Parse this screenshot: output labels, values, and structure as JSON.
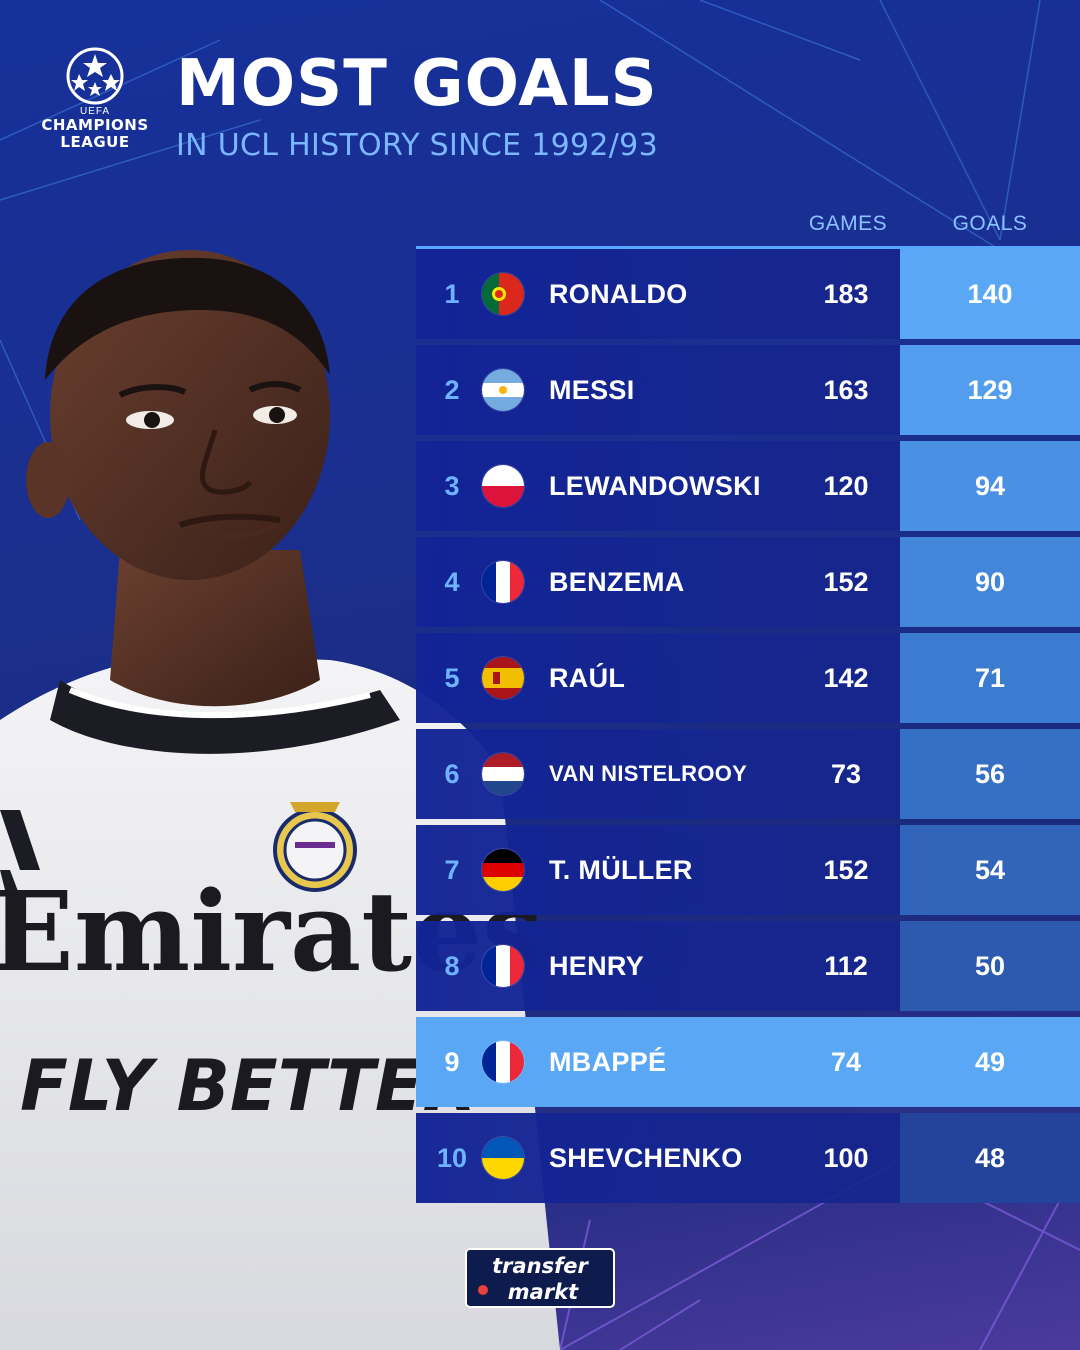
{
  "brand": {
    "competition_small": "UEFA",
    "competition_line1": "CHAMPIONS",
    "competition_line2": "LEAGUE",
    "publisher_line1": "transfer",
    "publisher_line2": "markt"
  },
  "header": {
    "title": "MOST GOALS",
    "subtitle": "IN UCL HISTORY SINCE 1992/93"
  },
  "table": {
    "columns": {
      "games": "GAMES",
      "goals": "GOALS"
    },
    "rows": [
      {
        "rank": "1",
        "name": "RONALDO",
        "flag": "portugal-flag",
        "games": "183",
        "goals": "140",
        "goals_color": "#5aa8f5"
      },
      {
        "rank": "2",
        "name": "MESSI",
        "flag": "argentina-flag",
        "games": "163",
        "goals": "129",
        "goals_color": "#529ded"
      },
      {
        "rank": "3",
        "name": "LEWANDOWSKI",
        "flag": "poland-flag",
        "games": "120",
        "goals": "94",
        "goals_color": "#4a90e3"
      },
      {
        "rank": "4",
        "name": "BENZEMA",
        "flag": "france-flag",
        "games": "152",
        "goals": "90",
        "goals_color": "#4386da"
      },
      {
        "rank": "5",
        "name": "RAÚL",
        "flag": "spain-flag",
        "games": "142",
        "goals": "71",
        "goals_color": "#3b7bd0"
      },
      {
        "rank": "6",
        "name": "VAN NISTELROOY",
        "flag": "netherlands-flag",
        "games": "73",
        "goals": "56",
        "goals_color": "#3670c5"
      },
      {
        "rank": "7",
        "name": "T. MÜLLER",
        "flag": "germany-flag",
        "games": "152",
        "goals": "54",
        "goals_color": "#3165ba"
      },
      {
        "rank": "8",
        "name": "HENRY",
        "flag": "france-flag",
        "games": "112",
        "goals": "50",
        "goals_color": "#2c5aaf"
      },
      {
        "rank": "9",
        "name": "MBAPPÉ",
        "flag": "france-flag",
        "games": "74",
        "goals": "49",
        "goals_color": "#5aa7f5",
        "highlight": true
      },
      {
        "rank": "10",
        "name": "SHEVCHENKO",
        "flag": "ukraine-flag",
        "games": "100",
        "goals": "48",
        "goals_color": "#23449a"
      }
    ]
  },
  "player_photo": {
    "shirt_sponsor_line1": "Emirates",
    "shirt_sponsor_line2": "FLY BETTER"
  }
}
